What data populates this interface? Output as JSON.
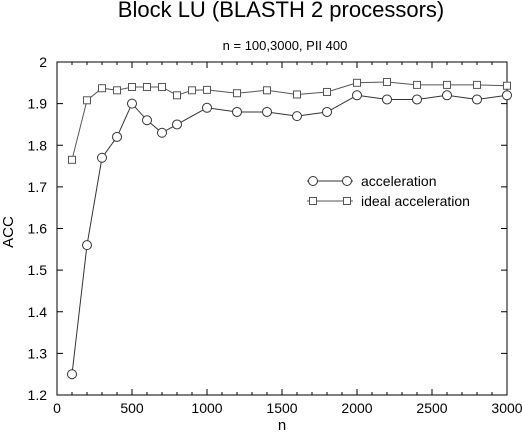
{
  "chart_data": {
    "type": "line",
    "title": "Block LU (BLASTH 2 processors)",
    "subtitle": "n = 100,3000, PII 400",
    "xlabel": "n",
    "ylabel": "ACC",
    "xlim": [
      0,
      3000
    ],
    "ylim": [
      1.2,
      2.0
    ],
    "xticks": [
      0,
      500,
      1000,
      1500,
      2000,
      2500,
      3000
    ],
    "yticks": [
      1.2,
      1.3,
      1.4,
      1.5,
      1.6,
      1.7,
      1.8,
      1.9,
      2.0
    ],
    "xtick_labels": [
      "0",
      "500",
      "1000",
      "1500",
      "2000",
      "2500",
      "3000"
    ],
    "ytick_labels": [
      "1.2",
      "1.3",
      "1.4",
      "1.5",
      "1.6",
      "1.7",
      "1.8",
      "1.9",
      "2"
    ],
    "grid": false,
    "legend_position": "right",
    "series": [
      {
        "name": "acceleration",
        "marker": "circle",
        "color": "#333333",
        "x": [
          100,
          200,
          300,
          400,
          500,
          600,
          700,
          800,
          1000,
          1200,
          1400,
          1600,
          1800,
          2000,
          2200,
          2400,
          2600,
          2800,
          3000
        ],
        "y": [
          1.25,
          1.56,
          1.77,
          1.82,
          1.9,
          1.86,
          1.83,
          1.85,
          1.89,
          1.88,
          1.88,
          1.87,
          1.88,
          1.92,
          1.91,
          1.91,
          1.92,
          1.91,
          1.92
        ]
      },
      {
        "name": "ideal acceleration",
        "marker": "square",
        "color": "#555555",
        "x": [
          100,
          200,
          300,
          400,
          500,
          600,
          700,
          800,
          900,
          1000,
          1200,
          1400,
          1600,
          1800,
          2000,
          2200,
          2400,
          2600,
          2800,
          3000
        ],
        "y": [
          1.765,
          1.908,
          1.937,
          1.932,
          1.94,
          1.94,
          1.94,
          1.92,
          1.932,
          1.933,
          1.925,
          1.932,
          1.922,
          1.928,
          1.95,
          1.952,
          1.945,
          1.945,
          1.945,
          1.943
        ]
      }
    ]
  }
}
